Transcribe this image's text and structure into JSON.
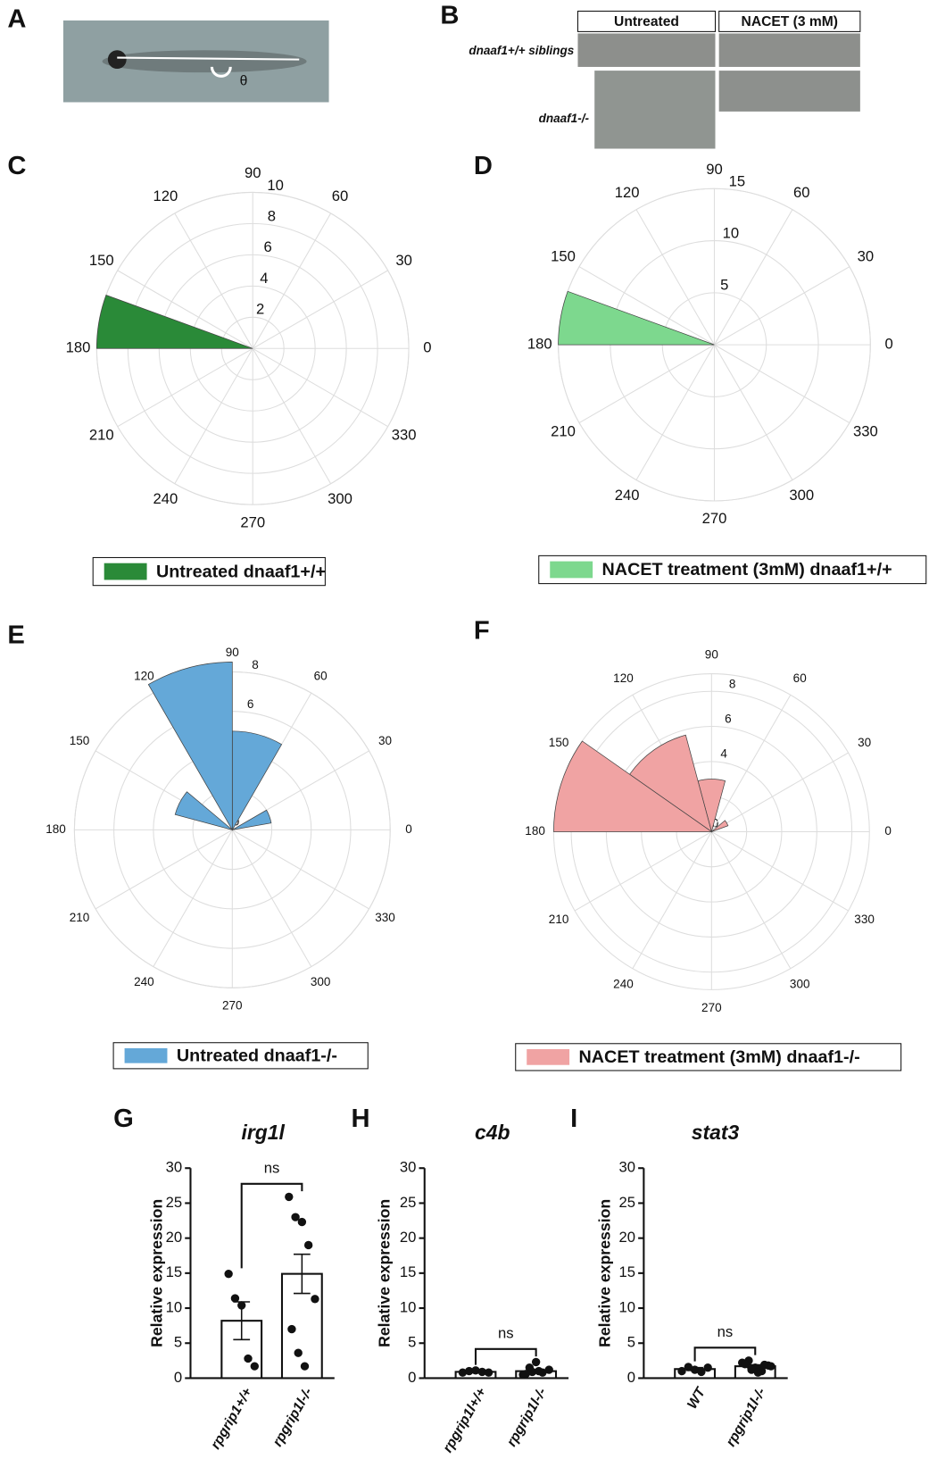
{
  "photos": {
    "A": {
      "panel": "A",
      "annotation": "θ"
    },
    "B": {
      "panel": "B",
      "columns": [
        "Untreated",
        "NACET (3 mM)"
      ],
      "rows": [
        "dnaaf1+/+ siblings",
        "dnaaf1-/-"
      ]
    }
  },
  "chart_data": [
    {
      "type": "polar",
      "panel": "C",
      "rlim": [
        0,
        10
      ],
      "rticks": [
        2,
        4,
        6,
        8,
        10
      ],
      "thetaticks": [
        0,
        30,
        60,
        90,
        120,
        150,
        180,
        210,
        240,
        270,
        300,
        330
      ],
      "series": [
        {
          "name": "Untreated dnaaf1+/+",
          "color": "#2a8a38",
          "theta": [
            [
              160,
              180
            ]
          ],
          "values": [
            10
          ]
        }
      ]
    },
    {
      "type": "polar",
      "panel": "D",
      "rlim": [
        0,
        15
      ],
      "rticks": [
        5,
        10,
        15
      ],
      "thetaticks": [
        0,
        30,
        60,
        90,
        120,
        150,
        180,
        210,
        240,
        270,
        300,
        330
      ],
      "series": [
        {
          "name": "NACET treatment (3mM) dnaaf1+/+",
          "color": "#7dd88e",
          "theta": [
            [
              160,
              180
            ]
          ],
          "values": [
            15
          ]
        }
      ]
    },
    {
      "type": "polar",
      "panel": "E",
      "rlim": [
        0,
        8
      ],
      "rticks": [
        0,
        2,
        4,
        6,
        8
      ],
      "thetaticks": [
        0,
        30,
        60,
        90,
        120,
        150,
        180,
        210,
        240,
        270,
        300,
        330
      ],
      "series": [
        {
          "name": "Untreated dnaaf1-/-",
          "color": "#64a8d8",
          "theta": [
            [
              10,
              30
            ],
            [
              60,
              90
            ],
            [
              90,
              120
            ],
            [
              140,
              165
            ]
          ],
          "values": [
            2,
            5,
            8.5,
            3
          ]
        }
      ]
    },
    {
      "type": "polar",
      "panel": "F",
      "rlim": [
        0,
        9
      ],
      "rticks": [
        0,
        2,
        4,
        6,
        8
      ],
      "thetaticks": [
        0,
        30,
        60,
        90,
        120,
        150,
        180,
        210,
        240,
        270,
        300,
        330
      ],
      "series": [
        {
          "name": "NACET treatment (3mM) dnaaf1-/-",
          "color": "#f0a3a3",
          "theta": [
            [
              20,
              40
            ],
            [
              75,
              105
            ],
            [
              105,
              145
            ],
            [
              145,
              180
            ]
          ],
          "values": [
            1,
            3,
            5.7,
            9
          ]
        }
      ]
    },
    {
      "type": "bar",
      "panel": "G",
      "title": "irg1l",
      "ylabel": "Relative expression",
      "annotation": "ns",
      "categories": [
        "rpgrip1+/+",
        "rpgrip1l-/-"
      ],
      "values": [
        8.2,
        14.9
      ],
      "errors": [
        2.7,
        2.8
      ],
      "points": [
        [
          14.9,
          11.4,
          10.4,
          2.8,
          1.7
        ],
        [
          25.9,
          23,
          22.3,
          19,
          11.3,
          7,
          3.6,
          1.7
        ]
      ],
      "ylim": [
        0,
        30
      ],
      "yticks": [
        0,
        5,
        10,
        15,
        20,
        25,
        30
      ],
      "color": "#ffffff"
    },
    {
      "type": "bar",
      "panel": "H",
      "title": "c4b",
      "ylabel": "Relative expression",
      "annotation": "ns",
      "categories": [
        "rpgrip1l+/+",
        "rpgrip1l-/-"
      ],
      "values": [
        0.9,
        1.0
      ],
      "errors": [
        0.1,
        0.2
      ],
      "points": [
        [
          0.8,
          1,
          1.1,
          0.9,
          0.8
        ],
        [
          0.5,
          1.5,
          2.3,
          0.8,
          1.2,
          0.6,
          0.9,
          1.0
        ]
      ],
      "ylim": [
        0,
        30
      ],
      "yticks": [
        0,
        5,
        10,
        15,
        20,
        25,
        30
      ],
      "color": "#ffffff"
    },
    {
      "type": "bar",
      "panel": "I",
      "title": "stat3",
      "ylabel": "Relative expression",
      "annotation": "ns",
      "categories": [
        "WT",
        "rpgrip1l-/-"
      ],
      "values": [
        1.3,
        1.7
      ],
      "errors": [
        0.2,
        0.2
      ],
      "points": [
        [
          1.0,
          1.6,
          1.2,
          0.9,
          1.5
        ],
        [
          2.2,
          2.5,
          1.5,
          1.0,
          1.8,
          2.0,
          1.2,
          0.8,
          1.9,
          1.7
        ]
      ],
      "ylim": [
        0,
        30
      ],
      "yticks": [
        0,
        5,
        10,
        15,
        20,
        25,
        30
      ],
      "color": "#ffffff"
    }
  ]
}
